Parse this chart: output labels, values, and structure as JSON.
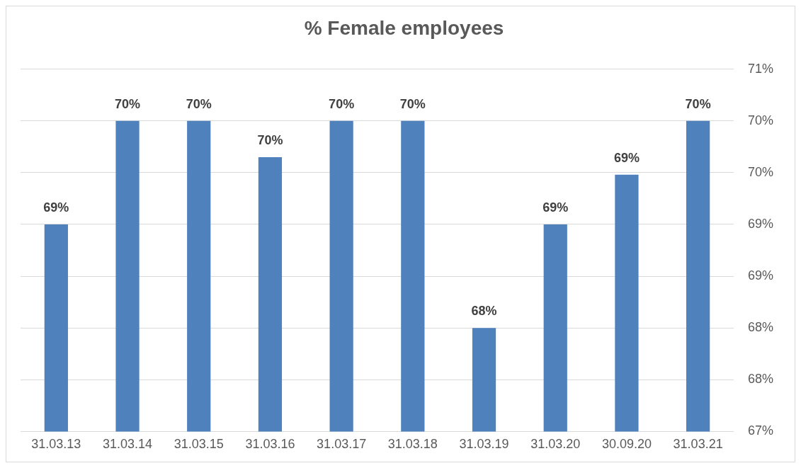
{
  "chart_data": {
    "type": "bar",
    "title": "% Female employees",
    "categories": [
      "31.03.13",
      "31.03.14",
      "31.03.15",
      "31.03.16",
      "31.03.17",
      "31.03.18",
      "31.03.19",
      "31.03.20",
      "30.09.20",
      "31.03.21"
    ],
    "values": [
      69.0,
      70.0,
      70.0,
      69.65,
      70.0,
      70.0,
      68.0,
      69.0,
      69.48,
      70.0
    ],
    "value_labels": [
      "69%",
      "70%",
      "70%",
      "70%",
      "70%",
      "70%",
      "68%",
      "69%",
      "69%",
      "70%"
    ],
    "color": "#4f81bd",
    "ylim": [
      67,
      70.5
    ],
    "yticks": [
      {
        "value": 67,
        "label": "67%"
      },
      {
        "value": 67.5,
        "label": "68%"
      },
      {
        "value": 68,
        "label": "68%"
      },
      {
        "value": 68.5,
        "label": "69%"
      },
      {
        "value": 69,
        "label": "69%"
      },
      {
        "value": 69.5,
        "label": "70%"
      },
      {
        "value": 70,
        "label": "70%"
      },
      {
        "value": 70.5,
        "label": "71%"
      }
    ],
    "grid": "y",
    "legend": false
  }
}
